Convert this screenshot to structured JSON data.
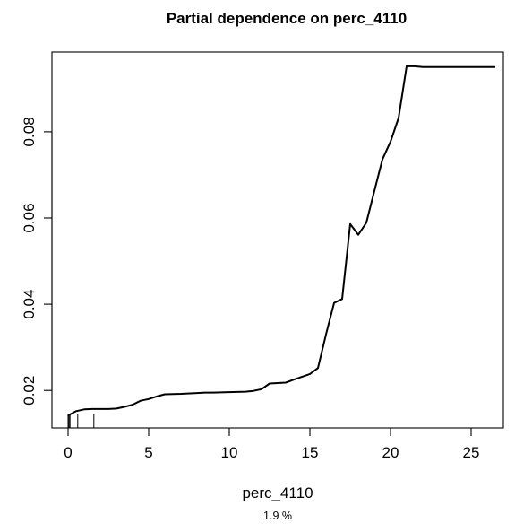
{
  "chart_data": {
    "type": "line",
    "title": "Partial dependence on perc_4110",
    "xlabel": "perc_4110",
    "subtitle": "1.9 %",
    "ylabel": "",
    "xlim": [
      -1,
      27
    ],
    "ylim": [
      0.0113,
      0.0985
    ],
    "xticks": [
      "0",
      "5",
      "10",
      "15",
      "20",
      "25"
    ],
    "yticks": [
      "0.02",
      "0.04",
      "0.06",
      "0.08"
    ],
    "series": [
      {
        "x": [
          0.0,
          0.5,
          1.0,
          1.5,
          2.0,
          2.5,
          3.0,
          3.5,
          4.0,
          4.5,
          5.0,
          5.5,
          6.0,
          7.0,
          8.0,
          8.5,
          9.0,
          10.0,
          11.0,
          11.5,
          12.0,
          12.5,
          13.0,
          13.5,
          14.0,
          15.0,
          15.5,
          16.0,
          16.5,
          17.0,
          17.5,
          18.0,
          18.5,
          19.0,
          19.5,
          20.0,
          20.5,
          21.0,
          21.5,
          22.0,
          23.0,
          24.0,
          25.0,
          26.0,
          26.5
        ],
        "y": [
          0.0142,
          0.0152,
          0.0156,
          0.0157,
          0.0157,
          0.0157,
          0.0158,
          0.0162,
          0.0167,
          0.0176,
          0.018,
          0.0186,
          0.0191,
          0.0192,
          0.0194,
          0.0195,
          0.0195,
          0.0196,
          0.0197,
          0.0199,
          0.0203,
          0.0216,
          0.0217,
          0.0218,
          0.0225,
          0.0238,
          0.0252,
          0.033,
          0.0403,
          0.0412,
          0.0586,
          0.0561,
          0.0589,
          0.0663,
          0.0736,
          0.0777,
          0.0832,
          0.0952,
          0.0952,
          0.095,
          0.095,
          0.095,
          0.095,
          0.095,
          0.095
        ]
      }
    ],
    "rug": [
      0.0,
      0.06,
      0.12,
      0.6,
      1.6
    ],
    "grid": false,
    "legend": "none",
    "colors": {
      "line": "#000000",
      "axes": "#000000",
      "background": "#ffffff"
    }
  }
}
